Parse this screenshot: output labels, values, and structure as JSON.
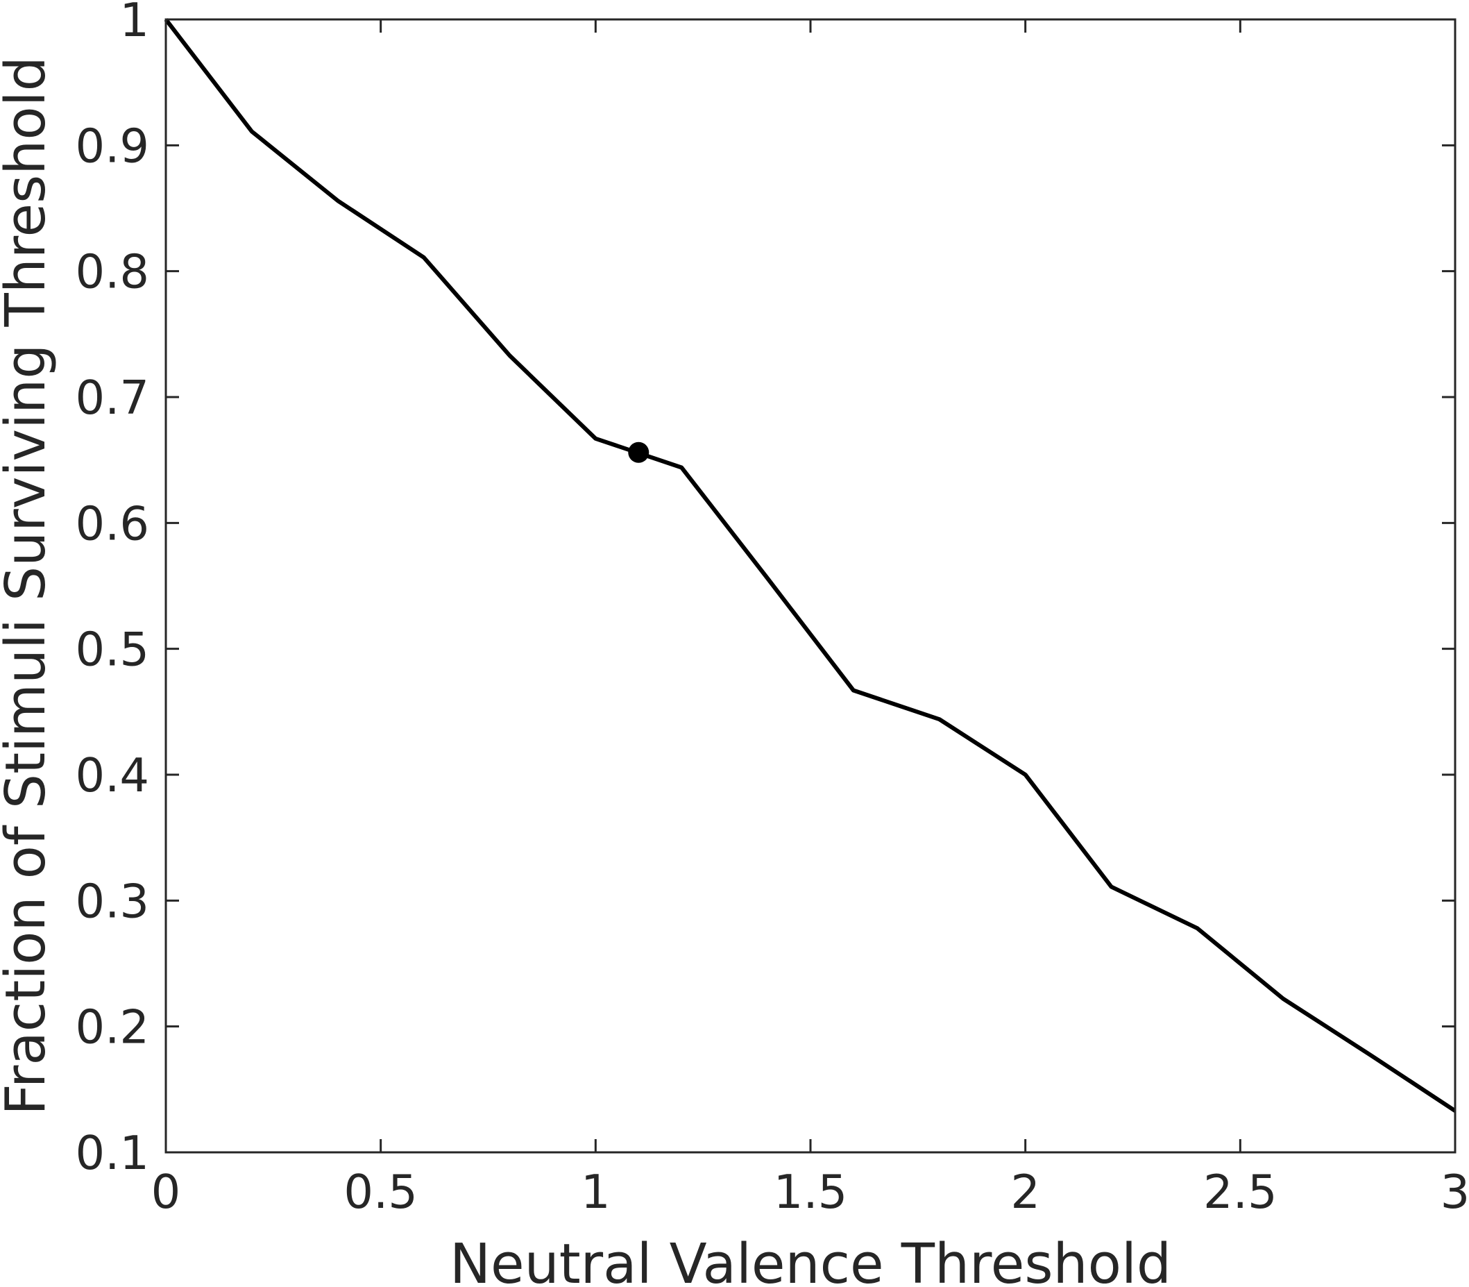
{
  "chart_data": {
    "type": "line",
    "title": "",
    "xlabel": "Neutral Valence Threshold",
    "ylabel": "Fraction of Stimuli Surviving Threshold",
    "xlim": [
      0,
      3
    ],
    "ylim": [
      0.1,
      1
    ],
    "xticks": [
      0,
      0.5,
      1,
      1.5,
      2,
      2.5,
      3
    ],
    "xtick_labels": [
      "0",
      "0.5",
      "1",
      "1.5",
      "2",
      "2.5",
      "3"
    ],
    "yticks": [
      0.1,
      0.2,
      0.3,
      0.4,
      0.5,
      0.6,
      0.7,
      0.8,
      0.9,
      1
    ],
    "ytick_labels": [
      "0.1",
      "0.2",
      "0.3",
      "0.4",
      "0.5",
      "0.6",
      "0.7",
      "0.8",
      "0.9",
      "1"
    ],
    "grid": false,
    "legend": "none",
    "series": [
      {
        "x": [
          0,
          0.2,
          0.4,
          0.6,
          0.8,
          1.0,
          1.2,
          1.4,
          1.6,
          1.8,
          2.0,
          2.2,
          2.4,
          2.6,
          2.8,
          3.0
        ],
        "y": [
          1.0,
          0.911,
          0.856,
          0.811,
          0.733,
          0.667,
          0.644,
          0.556,
          0.467,
          0.444,
          0.4,
          0.311,
          0.278,
          0.222,
          0.178,
          0.133
        ],
        "color": "#000000"
      }
    ],
    "highlight_point": {
      "x": 1.1,
      "y": 0.656,
      "color": "#000000"
    }
  }
}
